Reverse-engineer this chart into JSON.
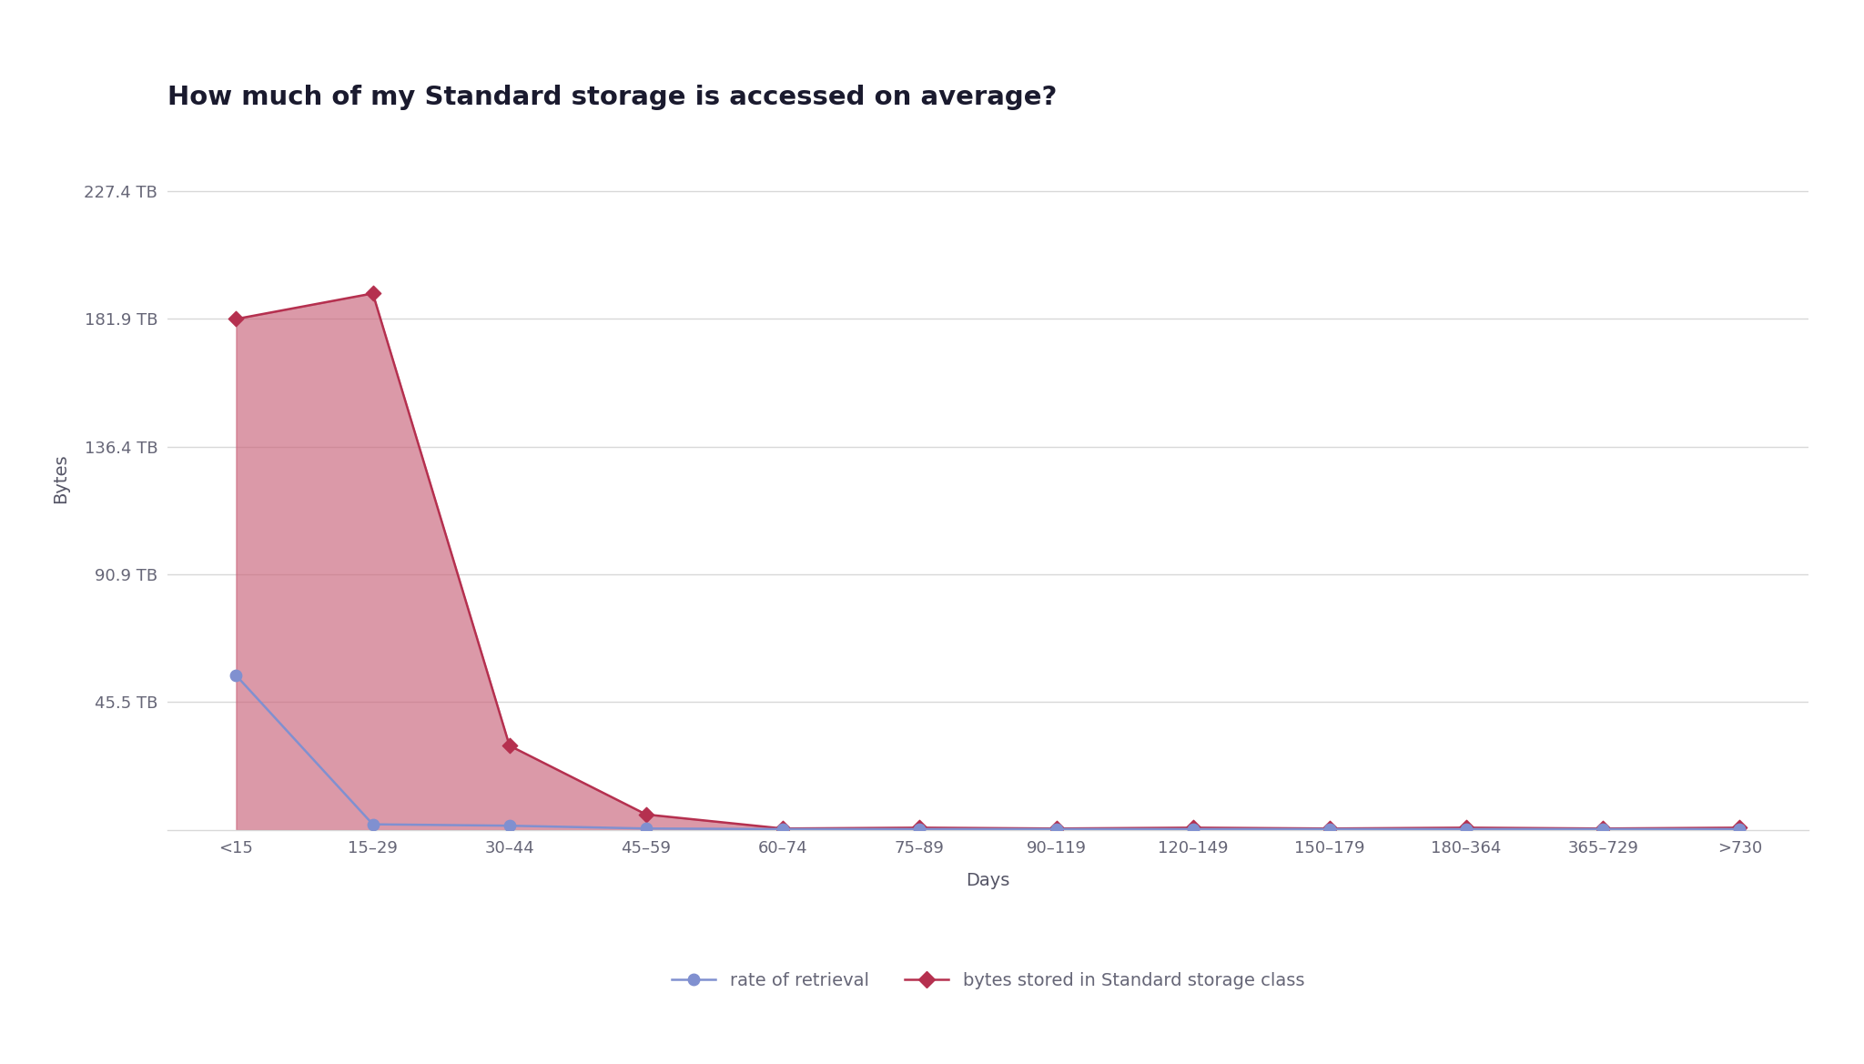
{
  "title": "How much of my Standard storage is accessed on average?",
  "xlabel": "Days",
  "ylabel": "Bytes",
  "categories": [
    "<15",
    "15–29",
    "30–44",
    "45–59",
    "60–74",
    "75–89",
    "90–119",
    "120–149",
    "150–179",
    "180–364",
    "365–729",
    ">730"
  ],
  "bytes_stored": [
    181.9,
    191.0,
    30.0,
    5.5,
    0.5,
    0.8,
    0.5,
    0.8,
    0.5,
    0.8,
    0.5,
    0.8
  ],
  "rate_of_retrieval": [
    55.0,
    2.0,
    1.5,
    0.5,
    0.3,
    0.3,
    0.3,
    0.3,
    0.3,
    0.3,
    0.3,
    0.3
  ],
  "ytick_labels": [
    "227.4 TB",
    "181.9 TB",
    "136.4 TB",
    "90.9 TB",
    "45.5 TB"
  ],
  "ytick_values": [
    227.4,
    181.9,
    136.4,
    90.9,
    45.5
  ],
  "ymax": 250,
  "ymin": 0,
  "background_color": "#ffffff",
  "fill_color": "#c9637a",
  "fill_alpha": 0.65,
  "line_color_bytes": "#b5304f",
  "line_color_retrieval": "#8090d0",
  "marker_color_bytes": "#b5304f",
  "marker_color_retrieval": "#8090d0",
  "grid_color": "#d8d8d8",
  "title_fontsize": 21,
  "label_fontsize": 14,
  "tick_fontsize": 13,
  "legend_fontsize": 14,
  "title_color": "#1a1a2e",
  "axis_label_color": "#555566",
  "tick_color": "#666677"
}
